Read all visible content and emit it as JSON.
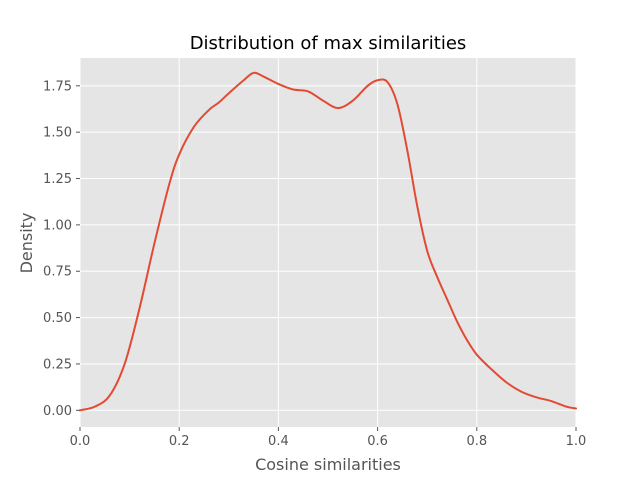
{
  "chart_data": {
    "type": "line",
    "title": "Distribution of max similarities",
    "xlabel": "Cosine similarities",
    "ylabel": "Density",
    "xlim": [
      0.0,
      1.0
    ],
    "ylim": [
      -0.09,
      1.9
    ],
    "x_ticks": [
      "0.0",
      "0.2",
      "0.4",
      "0.6",
      "0.8",
      "1.0"
    ],
    "y_ticks": [
      "0.00",
      "0.25",
      "0.50",
      "0.75",
      "1.00",
      "1.25",
      "1.50",
      "1.75"
    ],
    "grid": true,
    "colors": {
      "background": "#e5e5e5",
      "grid": "#ffffff",
      "line": "#e24a33"
    },
    "series": [
      {
        "x": [
          0.0,
          0.03,
          0.06,
          0.09,
          0.12,
          0.15,
          0.18,
          0.2,
          0.23,
          0.26,
          0.28,
          0.3,
          0.33,
          0.35,
          0.37,
          0.4,
          0.43,
          0.46,
          0.49,
          0.52,
          0.55,
          0.58,
          0.6,
          0.62,
          0.64,
          0.66,
          0.68,
          0.7,
          0.72,
          0.74,
          0.76,
          0.78,
          0.8,
          0.83,
          0.86,
          0.89,
          0.92,
          0.95,
          0.98,
          1.0
        ],
        "y": [
          0.0,
          0.02,
          0.08,
          0.25,
          0.55,
          0.9,
          1.22,
          1.38,
          1.53,
          1.62,
          1.66,
          1.71,
          1.78,
          1.82,
          1.8,
          1.76,
          1.73,
          1.72,
          1.67,
          1.63,
          1.67,
          1.75,
          1.78,
          1.77,
          1.65,
          1.4,
          1.1,
          0.86,
          0.72,
          0.6,
          0.48,
          0.38,
          0.3,
          0.22,
          0.15,
          0.1,
          0.07,
          0.05,
          0.02,
          0.01
        ]
      }
    ]
  }
}
